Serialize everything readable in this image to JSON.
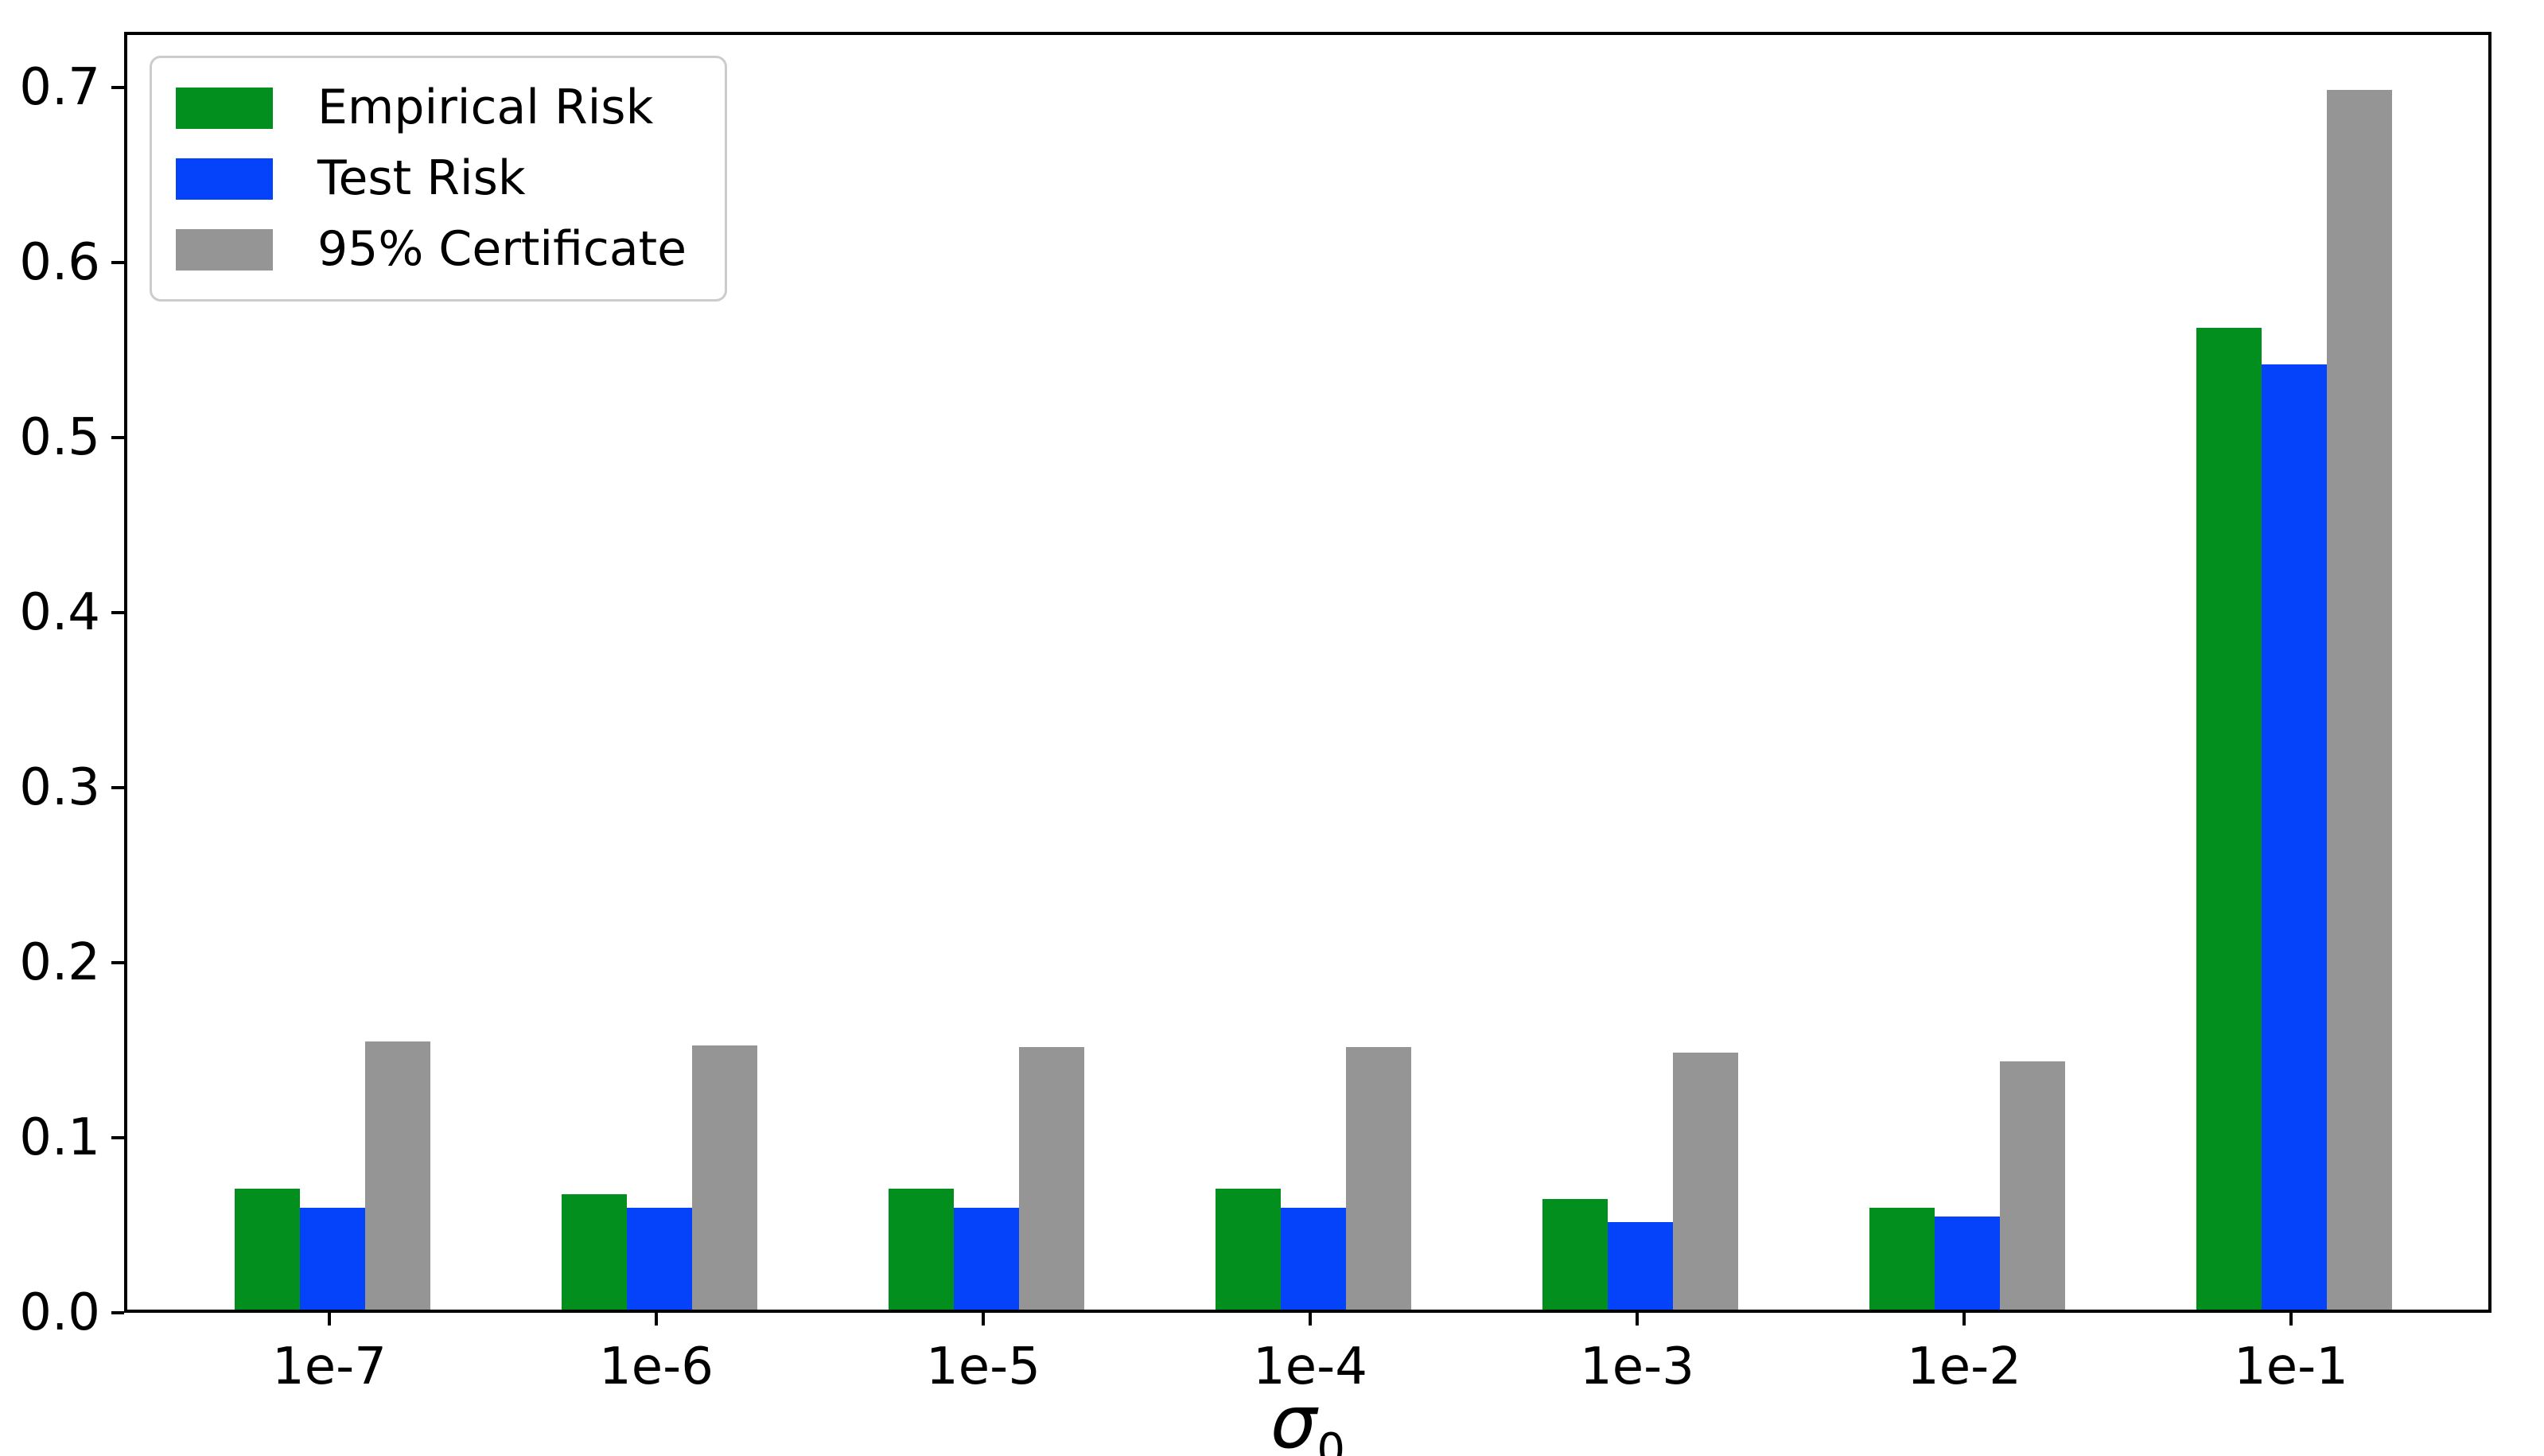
{
  "chart_data": {
    "type": "bar",
    "categories": [
      "1e-7",
      "1e-6",
      "1e-5",
      "1e-4",
      "1e-3",
      "1e-2",
      "1e-1"
    ],
    "series": [
      {
        "name": "Empirical Risk",
        "color": "#028f1e",
        "values": [
          0.069,
          0.066,
          0.069,
          0.069,
          0.063,
          0.058,
          0.561
        ]
      },
      {
        "name": "Test Risk",
        "color": "#0443fa",
        "values": [
          0.058,
          0.058,
          0.058,
          0.058,
          0.05,
          0.053,
          0.54
        ]
      },
      {
        "name": "95% Certificate",
        "color": "#959595",
        "values": [
          0.153,
          0.151,
          0.15,
          0.15,
          0.147,
          0.142,
          0.697
        ]
      }
    ],
    "xlabel": {
      "symbol": "σ",
      "subscript": "0"
    },
    "ylabel": "",
    "yticks": [
      "0.0",
      "0.1",
      "0.2",
      "0.3",
      "0.4",
      "0.5",
      "0.6",
      "0.7"
    ],
    "ytick_values": [
      0.0,
      0.1,
      0.2,
      0.3,
      0.4,
      0.5,
      0.6,
      0.7
    ],
    "ylim": [
      0,
      0.7318
    ],
    "grid": false,
    "legend_position": "upper left",
    "axis_color": "#000000",
    "background_color": "#ffffff"
  }
}
